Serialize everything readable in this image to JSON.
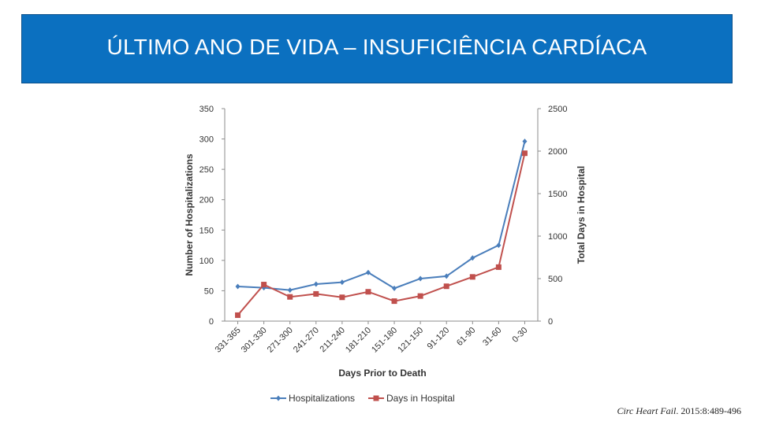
{
  "slide": {
    "title": "ÚLTIMO ANO DE VIDA – INSUFICIÊNCIA CARDÍACA",
    "citation_journal": "Circ Heart Fail",
    "citation_rest": ". 2015:8:489-496",
    "title_bg": "#0b70c0"
  },
  "chart_data": {
    "type": "line",
    "categories": [
      "331-365",
      "301-330",
      "271-300",
      "241-270",
      "211-240",
      "181-210",
      "151-180",
      "121-150",
      "91-120",
      "61-90",
      "31-60",
      "0-30"
    ],
    "xlabel": "Days Prior to Death",
    "ylabel": "Number of Hospitalizations",
    "y2label": "Total Days in Hospital",
    "ylim": [
      0,
      350
    ],
    "yticks": [
      0,
      50,
      100,
      150,
      200,
      250,
      300,
      350
    ],
    "y2lim": [
      0,
      2500
    ],
    "y2ticks": [
      0,
      500,
      1000,
      1500,
      2000,
      2500
    ],
    "legend_position": "bottom",
    "series": [
      {
        "name": "Hospitalizations",
        "axis": "left",
        "marker": "diamond",
        "color": "#4a7ebb",
        "values": [
          57,
          55,
          51,
          61,
          64,
          80,
          54,
          70,
          74,
          104,
          125,
          296
        ]
      },
      {
        "name": "Days in Hospital",
        "axis": "right",
        "marker": "square",
        "color": "#c0504d",
        "values": [
          70,
          430,
          285,
          320,
          280,
          345,
          235,
          295,
          410,
          520,
          635,
          1975
        ]
      }
    ]
  }
}
